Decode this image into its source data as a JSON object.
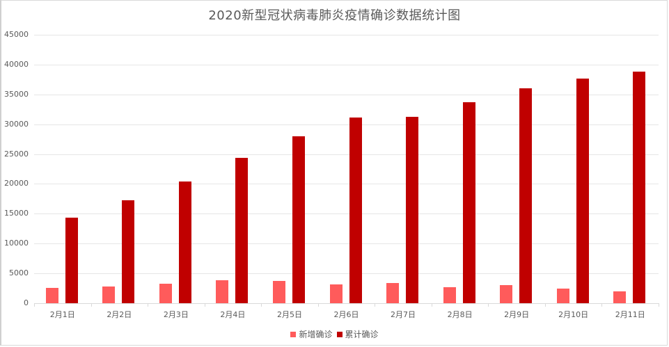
{
  "chart_data": {
    "type": "bar",
    "title": "2020新型冠状病毒肺炎疫情确诊数据统计图",
    "xlabel": "",
    "ylabel": "",
    "ylim": [
      0,
      45000
    ],
    "yticks": [
      0,
      5000,
      10000,
      15000,
      20000,
      25000,
      30000,
      35000,
      40000,
      45000
    ],
    "grid": true,
    "legend_position": "bottom",
    "categories": [
      "2月1日",
      "2月2日",
      "2月3日",
      "2月4日",
      "2月5日",
      "2月6日",
      "2月7日",
      "2月8日",
      "2月9日",
      "2月10日",
      "2月11日"
    ],
    "series": [
      {
        "name": "新增确诊",
        "color": "#ff5b5b",
        "values": [
          2590,
          2830,
          3240,
          3890,
          3690,
          3140,
          3400,
          2660,
          3060,
          2480,
          2020
        ]
      },
      {
        "name": "累计确诊",
        "color": "#c00000",
        "values": [
          14380,
          17200,
          20440,
          24320,
          28000,
          31100,
          31200,
          33700,
          35980,
          37600,
          38800
        ]
      }
    ]
  }
}
